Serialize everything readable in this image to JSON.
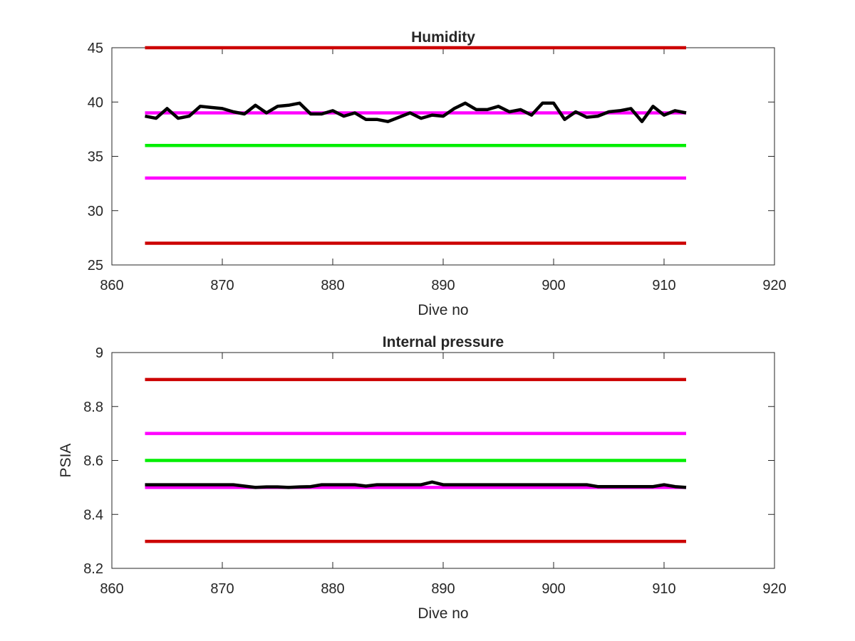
{
  "chart_data": [
    {
      "type": "line",
      "title": "Humidity",
      "xlabel": "Dive no",
      "ylabel": "",
      "xlim": [
        860,
        920
      ],
      "ylim": [
        25,
        45
      ],
      "xticks": [
        860,
        870,
        880,
        890,
        900,
        910,
        920
      ],
      "yticks": [
        25,
        30,
        35,
        40,
        45
      ],
      "grid": false,
      "series": [
        {
          "color": "#000000",
          "x": [
            863,
            864,
            865,
            866,
            867,
            868,
            869,
            870,
            871,
            872,
            873,
            874,
            875,
            876,
            877,
            878,
            879,
            880,
            881,
            882,
            883,
            884,
            885,
            886,
            887,
            888,
            889,
            890,
            891,
            892,
            893,
            894,
            895,
            896,
            897,
            898,
            899,
            900,
            901,
            902,
            903,
            904,
            905,
            906,
            907,
            908,
            909,
            910,
            911,
            912
          ],
          "y": [
            38.7,
            38.5,
            39.4,
            38.5,
            38.7,
            39.6,
            39.5,
            39.4,
            39.1,
            38.9,
            39.7,
            39.0,
            39.6,
            39.7,
            39.9,
            38.9,
            38.9,
            39.2,
            38.7,
            39.0,
            38.4,
            38.4,
            38.2,
            38.6,
            39.0,
            38.5,
            38.8,
            38.7,
            39.4,
            39.9,
            39.3,
            39.3,
            39.6,
            39.1,
            39.3,
            38.8,
            39.9,
            39.9,
            38.4,
            39.1,
            38.6,
            38.7,
            39.1,
            39.2,
            39.4,
            38.2,
            39.6,
            38.8,
            39.2,
            39.0
          ]
        },
        {
          "color": "#cc0000",
          "x": [
            863,
            912
          ],
          "y": [
            45,
            45
          ]
        },
        {
          "color": "#ff00ff",
          "x": [
            863,
            912
          ],
          "y": [
            39,
            39
          ]
        },
        {
          "color": "#00ee00",
          "x": [
            863,
            912
          ],
          "y": [
            36,
            36
          ]
        },
        {
          "color": "#ff00ff",
          "x": [
            863,
            912
          ],
          "y": [
            33,
            33
          ]
        },
        {
          "color": "#cc0000",
          "x": [
            863,
            912
          ],
          "y": [
            27,
            27
          ]
        }
      ]
    },
    {
      "type": "line",
      "title": "Internal pressure",
      "xlabel": "Dive no",
      "ylabel": "PSIA",
      "xlim": [
        860,
        920
      ],
      "ylim": [
        8.2,
        9
      ],
      "xticks": [
        860,
        870,
        880,
        890,
        900,
        910,
        920
      ],
      "yticks": [
        8.2,
        8.4,
        8.6,
        8.8,
        9
      ],
      "grid": false,
      "series": [
        {
          "color": "#000000",
          "x": [
            863,
            864,
            865,
            866,
            867,
            868,
            869,
            870,
            871,
            872,
            873,
            874,
            875,
            876,
            877,
            878,
            879,
            880,
            881,
            882,
            883,
            884,
            885,
            886,
            887,
            888,
            889,
            890,
            891,
            892,
            893,
            894,
            895,
            896,
            897,
            898,
            899,
            900,
            901,
            902,
            903,
            904,
            905,
            906,
            907,
            908,
            909,
            910,
            911,
            912
          ],
          "y": [
            8.51,
            8.51,
            8.51,
            8.51,
            8.51,
            8.51,
            8.51,
            8.51,
            8.51,
            8.505,
            8.5,
            8.502,
            8.502,
            8.5,
            8.502,
            8.503,
            8.51,
            8.51,
            8.51,
            8.51,
            8.505,
            8.51,
            8.51,
            8.51,
            8.51,
            8.51,
            8.52,
            8.51,
            8.51,
            8.51,
            8.51,
            8.51,
            8.51,
            8.51,
            8.51,
            8.51,
            8.51,
            8.51,
            8.51,
            8.51,
            8.51,
            8.503,
            8.503,
            8.503,
            8.503,
            8.503,
            8.503,
            8.51,
            8.503,
            8.5
          ]
        },
        {
          "color": "#cc0000",
          "x": [
            863,
            912
          ],
          "y": [
            8.9,
            8.9
          ]
        },
        {
          "color": "#ff00ff",
          "x": [
            863,
            912
          ],
          "y": [
            8.7,
            8.7
          ]
        },
        {
          "color": "#00ee00",
          "x": [
            863,
            912
          ],
          "y": [
            8.6,
            8.6
          ]
        },
        {
          "color": "#ff00ff",
          "x": [
            863,
            912
          ],
          "y": [
            8.5,
            8.5
          ]
        },
        {
          "color": "#cc0000",
          "x": [
            863,
            912
          ],
          "y": [
            8.3,
            8.3
          ]
        }
      ]
    }
  ]
}
